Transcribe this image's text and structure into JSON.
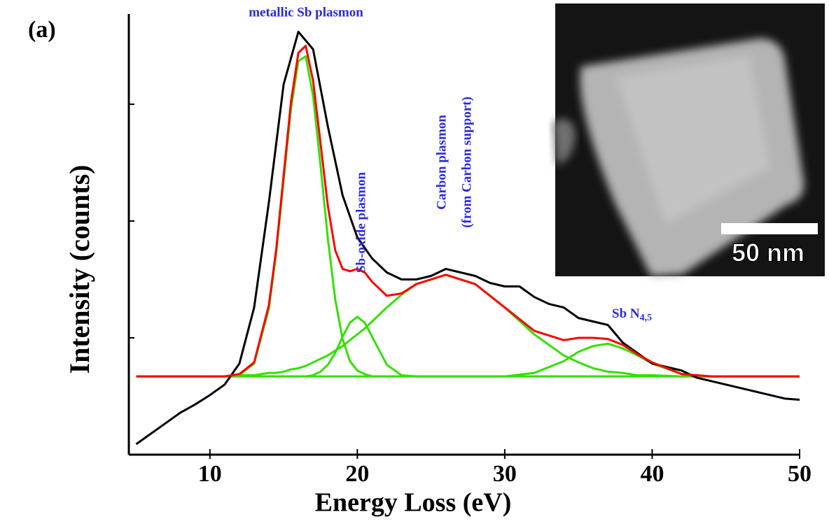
{
  "chart_data": {
    "type": "line",
    "panel_label": "(a)",
    "xlabel": "Energy Loss (eV)",
    "ylabel": "Intensity (counts)",
    "xlim": [
      4.5,
      50
    ],
    "ylim": [
      0,
      3.8
    ],
    "xticks": [
      10,
      20,
      30,
      40,
      50
    ],
    "yticks": [
      1,
      2,
      3
    ],
    "x": [
      5,
      8,
      10,
      11,
      12,
      13,
      14,
      14.5,
      15,
      15.5,
      16,
      16.5,
      17,
      17.5,
      18,
      18.5,
      19,
      19.5,
      20,
      20.5,
      21,
      22,
      23,
      24,
      26,
      28,
      30,
      32,
      34,
      35,
      36,
      37,
      38,
      39,
      40,
      42,
      44,
      46,
      50
    ],
    "series": [
      {
        "color": "#000000",
        "x": [
          5,
          6,
          7,
          8,
          9,
          10,
          11,
          12,
          13,
          14,
          15,
          16,
          17,
          18,
          19,
          20,
          21,
          22,
          23,
          24,
          25,
          26,
          27,
          28,
          29,
          30,
          31,
          32,
          33,
          34,
          35,
          36,
          37,
          38,
          39,
          40,
          41,
          42,
          43,
          44,
          45,
          46,
          47,
          48,
          49,
          50
        ],
        "values": [
          0.09,
          0.18,
          0.27,
          0.36,
          0.43,
          0.51,
          0.6,
          0.78,
          1.26,
          2.16,
          3.17,
          3.62,
          3.47,
          2.81,
          2.22,
          1.86,
          1.68,
          1.56,
          1.5,
          1.5,
          1.53,
          1.59,
          1.56,
          1.53,
          1.47,
          1.44,
          1.44,
          1.35,
          1.29,
          1.26,
          1.17,
          1.14,
          1.11,
          0.96,
          0.87,
          0.78,
          0.75,
          0.72,
          0.66,
          0.63,
          0.6,
          0.57,
          0.54,
          0.51,
          0.48,
          0.47
        ]
      },
      {
        "color": "#33e000",
        "values": [
          0.67,
          0.67,
          0.67,
          0.67,
          0.68,
          0.78,
          1.25,
          1.73,
          2.35,
          2.96,
          3.37,
          3.41,
          3.07,
          2.48,
          1.85,
          1.33,
          0.99,
          0.8,
          0.72,
          0.69,
          0.67,
          0.67,
          0.67,
          0.67,
          0.67,
          0.67,
          0.67,
          0.67,
          0.67,
          0.67,
          0.67,
          0.67,
          0.67,
          0.67,
          0.67,
          0.67,
          0.67,
          0.67,
          0.67
        ]
      },
      {
        "color": "#33e000",
        "values": [
          0.67,
          0.67,
          0.67,
          0.67,
          0.67,
          0.67,
          0.67,
          0.67,
          0.67,
          0.67,
          0.67,
          0.67,
          0.68,
          0.71,
          0.77,
          0.87,
          1.01,
          1.13,
          1.18,
          1.13,
          1.01,
          0.77,
          0.68,
          0.67,
          0.67,
          0.67,
          0.67,
          0.67,
          0.67,
          0.67,
          0.67,
          0.67,
          0.67,
          0.67,
          0.67,
          0.67,
          0.67,
          0.67,
          0.67
        ]
      },
      {
        "color": "#33e000",
        "values": [
          0.67,
          0.67,
          0.67,
          0.67,
          0.68,
          0.68,
          0.7,
          0.7,
          0.71,
          0.73,
          0.74,
          0.76,
          0.79,
          0.82,
          0.85,
          0.89,
          0.93,
          0.98,
          1.03,
          1.08,
          1.14,
          1.26,
          1.37,
          1.46,
          1.54,
          1.46,
          1.26,
          1.03,
          0.85,
          0.79,
          0.74,
          0.71,
          0.7,
          0.68,
          0.68,
          0.67,
          0.67,
          0.67,
          0.67
        ]
      },
      {
        "color": "#33e000",
        "values": [
          0.67,
          0.67,
          0.67,
          0.67,
          0.67,
          0.67,
          0.67,
          0.67,
          0.67,
          0.67,
          0.67,
          0.67,
          0.67,
          0.67,
          0.67,
          0.67,
          0.67,
          0.67,
          0.67,
          0.67,
          0.67,
          0.67,
          0.67,
          0.67,
          0.67,
          0.67,
          0.67,
          0.7,
          0.8,
          0.88,
          0.93,
          0.95,
          0.91,
          0.85,
          0.78,
          0.69,
          0.67,
          0.67,
          0.67
        ]
      },
      {
        "color": "#ff0000",
        "values": [
          0.67,
          0.67,
          0.67,
          0.67,
          0.69,
          0.79,
          1.28,
          1.76,
          2.39,
          3.02,
          3.44,
          3.5,
          3.2,
          2.67,
          2.13,
          1.75,
          1.59,
          1.57,
          1.59,
          1.56,
          1.48,
          1.36,
          1.38,
          1.46,
          1.54,
          1.46,
          1.26,
          1.06,
          0.98,
          1.0,
          1.0,
          0.99,
          0.94,
          0.86,
          0.79,
          0.69,
          0.67,
          0.67,
          0.67
        ]
      }
    ],
    "annotations": [
      {
        "text": "metallic Sb plasmon"
      },
      {
        "text": "Sb-oxide plasmon"
      },
      {
        "lines": [
          "Carbon plasmon",
          "(from Carbon support)"
        ]
      },
      {
        "text": "Sb N",
        "subscript": "4,5"
      }
    ],
    "inset_scale_label": "50 nm"
  }
}
